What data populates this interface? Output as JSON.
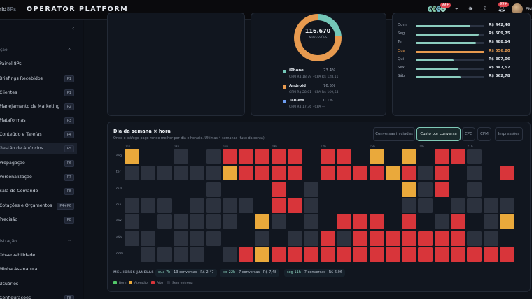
{
  "topbar": {
    "logo_text": "nid",
    "logo_suffix": "8Ps",
    "title": "OPERATOR PLATFORM",
    "presence_initials": [
      "A",
      "B",
      "C",
      "D"
    ],
    "presence_badge": "99+",
    "notif_badge": "99+",
    "user_initials": "EM"
  },
  "sidebar": {
    "sections": [
      {
        "label": "ção"
      },
      {
        "label": "istração"
      }
    ],
    "items": [
      {
        "label": "Painel 8Ps",
        "key": ""
      },
      {
        "label": "Briefings Recebidos",
        "key": "P1"
      },
      {
        "label": "Clientes",
        "key": "P1"
      },
      {
        "label": "Planejamento de Marketing",
        "key": "P2"
      },
      {
        "label": "Plataformas",
        "key": "P3"
      },
      {
        "label": "Conteúdo e Tarefas",
        "key": "P4"
      },
      {
        "label": "Gestão de Anúncios",
        "key": "P5"
      },
      {
        "label": "Propagação",
        "key": "P6"
      },
      {
        "label": "Personalização",
        "key": "P7"
      },
      {
        "label": "Sala de Comando",
        "key": "P8"
      },
      {
        "label": "Cotações e Orçamentos",
        "key": "P4+P6"
      },
      {
        "label": "Precisão",
        "key": "P8"
      },
      {
        "label": "Observabilidade",
        "key": ""
      },
      {
        "label": "Minha Assinatura",
        "key": ""
      },
      {
        "label": "Usuários",
        "key": ""
      },
      {
        "label": "Configurações",
        "key": "P8"
      }
    ]
  },
  "devices": {
    "total": "116.670",
    "total_label": "IMPRESSÕES",
    "items": [
      {
        "name": "iPhone",
        "pct": "23.4%",
        "sub": "CPM R$ 18,79 · CPA R$ 128,11",
        "color": "#74c7b8"
      },
      {
        "name": "Android",
        "pct": "76.5%",
        "sub": "CPM R$ 28,01 · CPA R$ 169,64",
        "color": "#e79a4f"
      },
      {
        "name": "Tablets",
        "pct": "0.1%",
        "sub": "CPM R$ 17,36 · CPA —",
        "color": "#6e9df0"
      }
    ]
  },
  "weekday_spend": [
    {
      "day": "Dom",
      "value": "R$ 442,46",
      "fraction": 0.8
    },
    {
      "day": "Seg",
      "value": "R$ 509,75",
      "fraction": 0.92
    },
    {
      "day": "Ter",
      "value": "R$ 488,14",
      "fraction": 0.88
    },
    {
      "day": "Qua",
      "value": "R$ 556,20",
      "fraction": 1.0,
      "highlight": true
    },
    {
      "day": "Qui",
      "value": "R$ 307,06",
      "fraction": 0.55
    },
    {
      "day": "Sex",
      "value": "R$ 347,57",
      "fraction": 0.62
    },
    {
      "day": "Sáb",
      "value": "R$ 362,78",
      "fraction": 0.65
    }
  ],
  "heatmap": {
    "title": "Dia da semana × hora",
    "subtitle": "Onde o tráfego pago rende melhor por dia e horário. Últimas 4 semanas (fuso da conta).",
    "tabs": [
      "Conversas iniciadas",
      "Custo por conversa",
      "CPC",
      "CPM",
      "Impressões"
    ],
    "active_tab": 1,
    "hour_labels": [
      "00h",
      "03h",
      "06h",
      "09h",
      "12h",
      "15h",
      "18h",
      "21h"
    ],
    "days": [
      "seg",
      "ter",
      "qua",
      "qui",
      "sex",
      "sáb",
      "dom"
    ],
    "colors": {
      "B": "#52c86a",
      "A": "#eaa93b",
      "R": "#d8353a",
      "N": "#2c323e"
    },
    "rows": [
      "AGGNGNRRRRRGRRGAGAGRRNGG",
      "NNNNNNARRRRGRRRRARNRGNGR",
      "GGGGGNGGGRGNGGGGGANRGNGG",
      "NNNGNNNNGRRNGGGGGNNGNNNN",
      "NGNNNNNGANGNGRRRGRGNRGNA",
      "NNGNNNGGNGNNRNRRRRRRRNNG",
      "GNNNNGNRARRRRRRRRRRRRRRR"
    ],
    "best_label": "MELHORES JANELAS",
    "best": [
      {
        "hour": "qua 7h",
        "text": "· 13 conversas · R$ 2,47"
      },
      {
        "hour": "ter 22h",
        "text": "· 7 conversas · R$ 7,48"
      },
      {
        "hour": "seg 11h",
        "text": "· 7 conversas · R$ 6,06"
      }
    ],
    "legend": [
      {
        "label": "Bom",
        "color": "#52c86a"
      },
      {
        "label": "Atenção",
        "color": "#eaa93b"
      },
      {
        "label": "Alto",
        "color": "#d8353a"
      },
      {
        "label": "Sem entrega",
        "color": "#2c323e"
      }
    ]
  }
}
